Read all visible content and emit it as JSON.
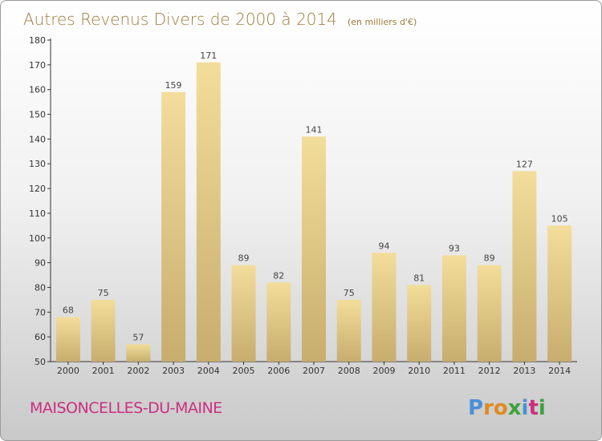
{
  "chart_data": {
    "type": "bar",
    "title": "Autres Revenus Divers de 2000 à 2014",
    "subtitle": "(en milliers d'€)",
    "categories": [
      "2000",
      "2001",
      "2002",
      "2003",
      "2004",
      "2005",
      "2006",
      "2007",
      "2008",
      "2009",
      "2010",
      "2011",
      "2012",
      "2013",
      "2014"
    ],
    "values": [
      68,
      75,
      57,
      159,
      171,
      89,
      82,
      141,
      75,
      94,
      81,
      93,
      89,
      127,
      105
    ],
    "ylim": [
      50,
      180
    ],
    "yticks": [
      50,
      60,
      70,
      80,
      90,
      100,
      110,
      120,
      130,
      140,
      150,
      160,
      170,
      180
    ],
    "grid": false,
    "bar_color_light": "#f3dd9a",
    "bar_color_dark": "#c7ad6e"
  },
  "footer": {
    "commune": "MAISONCELLES-DU-MAINE",
    "brand_letters": [
      "P",
      "r",
      "o",
      "x",
      "i",
      "t",
      "i"
    ],
    "brand_colors": [
      "#4a90d9",
      "#e08a1e",
      "#e08a1e",
      "#3aa43a",
      "#4a90d9",
      "#cc2f80",
      "#3aa43a"
    ]
  }
}
